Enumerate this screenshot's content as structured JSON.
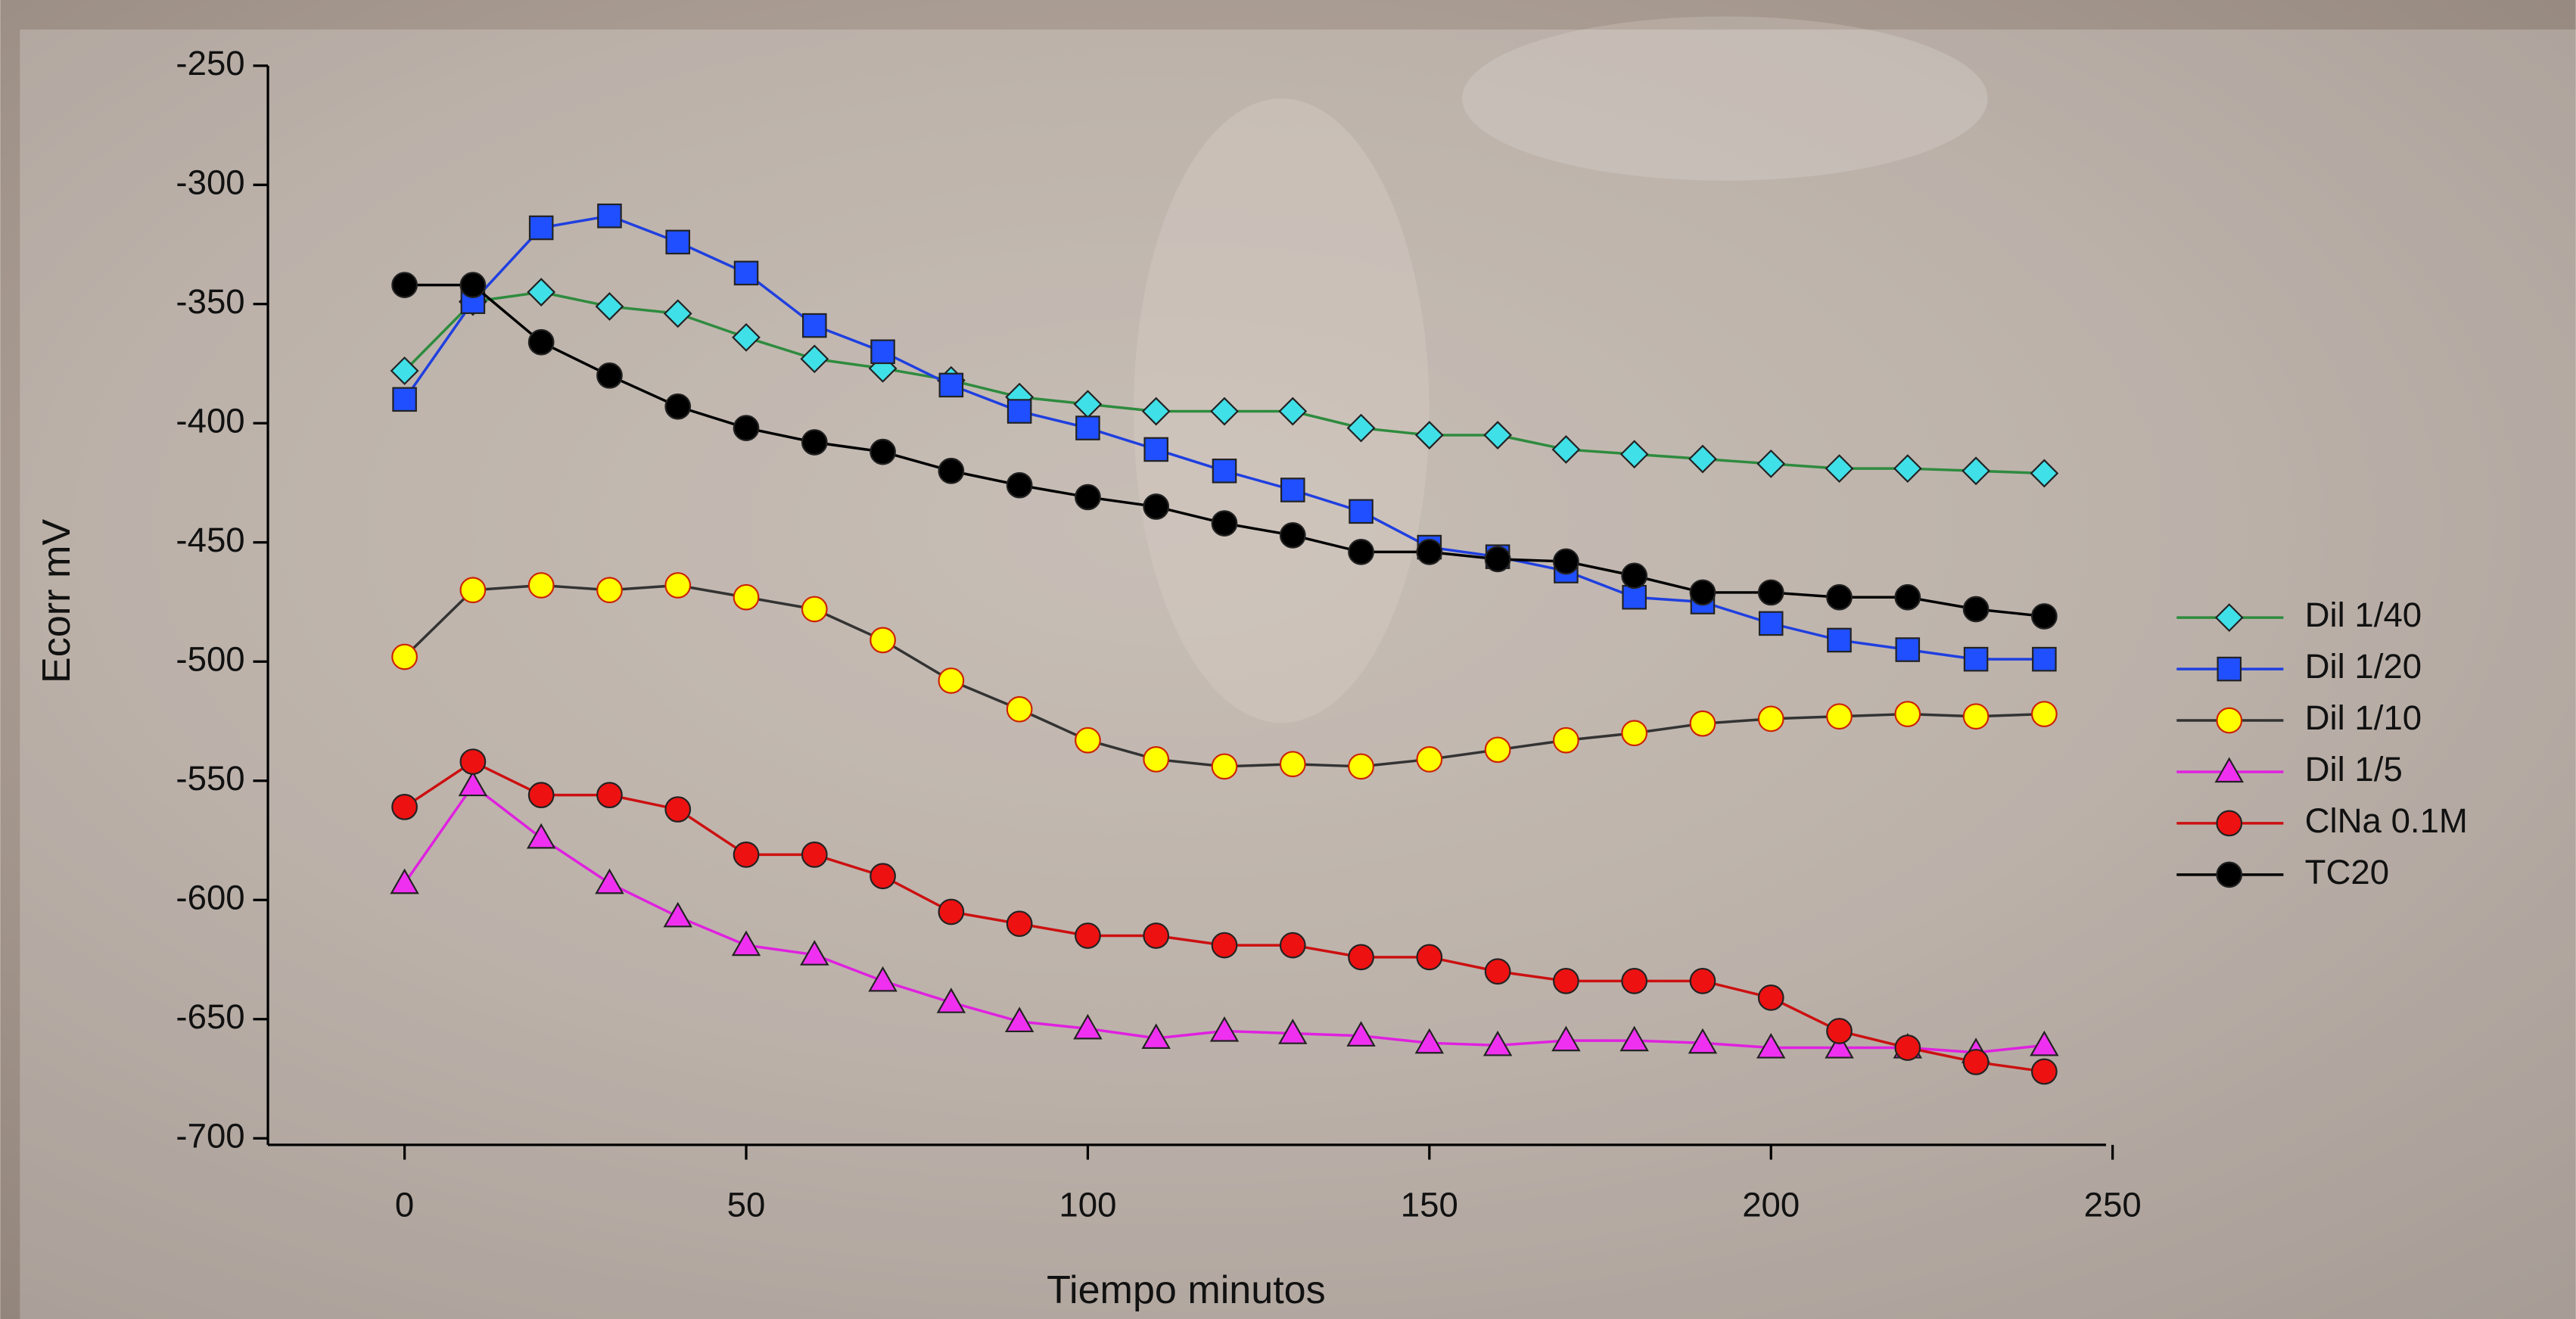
{
  "chart_data": {
    "type": "line",
    "x_label": "Tiempo minutos",
    "y_label": "Ecorr mV",
    "x": [
      0,
      10,
      20,
      30,
      40,
      50,
      60,
      70,
      80,
      90,
      100,
      110,
      120,
      130,
      140,
      150,
      160,
      170,
      180,
      190,
      200,
      210,
      220,
      230,
      240
    ],
    "xlim": [
      -20,
      250
    ],
    "xticks": [
      0,
      50,
      100,
      150,
      200,
      250
    ],
    "ylim": [
      -700,
      -250
    ],
    "yticks": [
      -700,
      -650,
      -600,
      -550,
      -500,
      -450,
      -400,
      -350,
      -300,
      -250
    ],
    "grid": false,
    "legend": "right",
    "series": [
      {
        "name": "Dil 1/40",
        "color": "#2e8b3e",
        "marker": "diamond",
        "marker_color": "#3fe0e8",
        "values": [
          -378,
          -349,
          -345,
          -351,
          -354,
          -364,
          -373,
          -377,
          -382,
          -389,
          -392,
          -395,
          -395,
          -395,
          -402,
          -405,
          -405,
          -411,
          -413,
          -415,
          -417,
          -419,
          -419,
          -420,
          -421
        ]
      },
      {
        "name": "Dil 1/20",
        "color": "#1f3fe0",
        "marker": "square",
        "marker_color": "#1f4fff",
        "values": [
          -390,
          -349,
          -318,
          -313,
          -324,
          -337,
          -359,
          -370,
          -384,
          -395,
          -402,
          -411,
          -420,
          -428,
          -437,
          -452,
          -456,
          -462,
          -473,
          -475,
          -484,
          -491,
          -495,
          -499,
          -499
        ]
      },
      {
        "name": "Dil 1/10",
        "color": "#333333",
        "marker": "circle",
        "marker_color": "#ffff00",
        "values": [
          -498,
          -470,
          -468,
          -470,
          -468,
          -473,
          -478,
          -491,
          -508,
          -520,
          -533,
          -541,
          -544,
          -543,
          -544,
          -541,
          -537,
          -533,
          -530,
          -526,
          -524,
          -523,
          -522,
          -523,
          -522
        ]
      },
      {
        "name": "Dil 1/5",
        "color": "#e020e0",
        "marker": "triangle",
        "marker_color": "#f030f0",
        "values": [
          -593,
          -552,
          -574,
          -593,
          -607,
          -619,
          -623,
          -634,
          -643,
          -651,
          -654,
          -658,
          -655,
          -656,
          -657,
          -660,
          -661,
          -659,
          -659,
          -660,
          -662,
          -662,
          -662,
          -664,
          -661
        ]
      },
      {
        "name": "ClNa 0.1M",
        "color": "#cc1010",
        "marker": "circle",
        "marker_color": "#ee1111",
        "values": [
          -561,
          -542,
          -556,
          -556,
          -562,
          -581,
          -581,
          -590,
          -605,
          -610,
          -615,
          -615,
          -619,
          -619,
          -624,
          -624,
          -630,
          -634,
          -634,
          -634,
          -641,
          -655,
          -662,
          -668,
          -672
        ]
      },
      {
        "name": "TC20",
        "color": "#000000",
        "marker": "circle",
        "marker_color": "#000000",
        "values": [
          -342,
          -342,
          -366,
          -380,
          -393,
          -402,
          -408,
          -412,
          -420,
          -426,
          -431,
          -435,
          -442,
          -447,
          -454,
          -454,
          -457,
          -458,
          -464,
          -471,
          -471,
          -473,
          -473,
          -478,
          -481
        ]
      }
    ]
  }
}
